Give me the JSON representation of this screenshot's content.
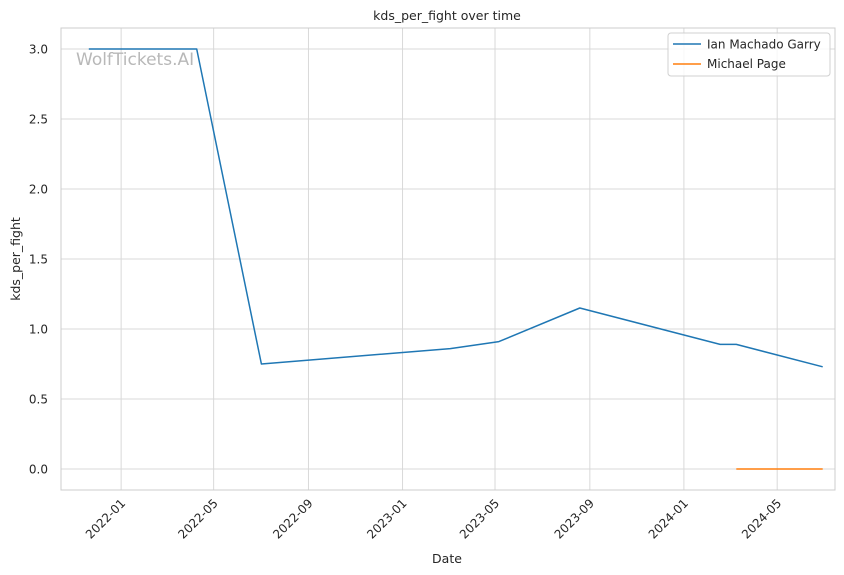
{
  "chart_data": {
    "type": "line",
    "title": "kds_per_fight over time",
    "xlabel": "Date",
    "ylabel": "kds_per_fight",
    "watermark": "WolfTickets.AI",
    "x_type": "date",
    "xlim": [
      "2021-10-15",
      "2024-07-15"
    ],
    "ylim": [
      -0.15,
      3.15
    ],
    "x_ticks": [
      {
        "date": "2022-01-01",
        "label": "2022-01"
      },
      {
        "date": "2022-05-01",
        "label": "2022-05"
      },
      {
        "date": "2022-09-01",
        "label": "2022-09"
      },
      {
        "date": "2023-01-01",
        "label": "2023-01"
      },
      {
        "date": "2023-05-01",
        "label": "2023-05"
      },
      {
        "date": "2023-09-01",
        "label": "2023-09"
      },
      {
        "date": "2024-01-01",
        "label": "2024-01"
      },
      {
        "date": "2024-05-01",
        "label": "2024-05"
      }
    ],
    "y_ticks": [
      {
        "value": 0.0,
        "label": "0.0"
      },
      {
        "value": 0.5,
        "label": "0.5"
      },
      {
        "value": 1.0,
        "label": "1.0"
      },
      {
        "value": 1.5,
        "label": "1.5"
      },
      {
        "value": 2.0,
        "label": "2.0"
      },
      {
        "value": 2.5,
        "label": "2.5"
      },
      {
        "value": 3.0,
        "label": "3.0"
      }
    ],
    "grid": true,
    "legend_position": "top-right",
    "series": [
      {
        "name": "Ian Machado Garry",
        "color": "#1f77b4",
        "points": [
          {
            "x": "2021-11-20",
            "y": 3.0
          },
          {
            "x": "2022-04-09",
            "y": 3.0
          },
          {
            "x": "2022-07-02",
            "y": 0.75
          },
          {
            "x": "2023-03-04",
            "y": 0.86
          },
          {
            "x": "2023-05-06",
            "y": 0.91
          },
          {
            "x": "2023-08-19",
            "y": 1.15
          },
          {
            "x": "2024-02-17",
            "y": 0.89
          },
          {
            "x": "2024-03-09",
            "y": 0.89
          },
          {
            "x": "2024-06-29",
            "y": 0.73
          }
        ]
      },
      {
        "name": "Michael Page",
        "color": "#ff7f0e",
        "points": [
          {
            "x": "2024-03-09",
            "y": 0.0
          },
          {
            "x": "2024-06-29",
            "y": 0.0
          }
        ]
      }
    ]
  }
}
